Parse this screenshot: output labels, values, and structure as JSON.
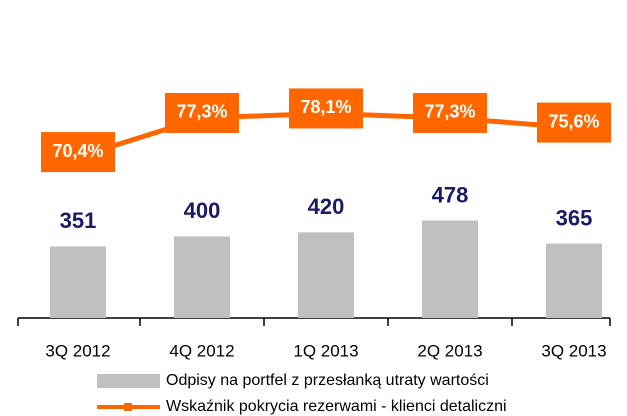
{
  "chart_data": {
    "type": "bar",
    "categories": [
      "3Q 2012",
      "4Q 2012",
      "1Q 2013",
      "2Q 2013",
      "3Q 2013"
    ],
    "ylim": [
      0,
      1500
    ],
    "y2lim": [
      42,
      96
    ],
    "series": [
      {
        "name": "Odpisy na portfel z przesłanką utraty wartości",
        "type": "bar",
        "color": "#c0c0c0",
        "values": [
          351,
          400,
          420,
          478,
          365
        ]
      },
      {
        "name": "Wskaźnik pokrycia rezerwami - klienci detaliczni",
        "type": "line",
        "axis": "y2",
        "color": "#ff6600",
        "values": [
          70.4,
          77.3,
          78.1,
          77.3,
          75.6
        ],
        "value_labels": [
          "70,4%",
          "77,3%",
          "78,1%",
          "77,3%",
          "75,6%"
        ]
      }
    ]
  }
}
